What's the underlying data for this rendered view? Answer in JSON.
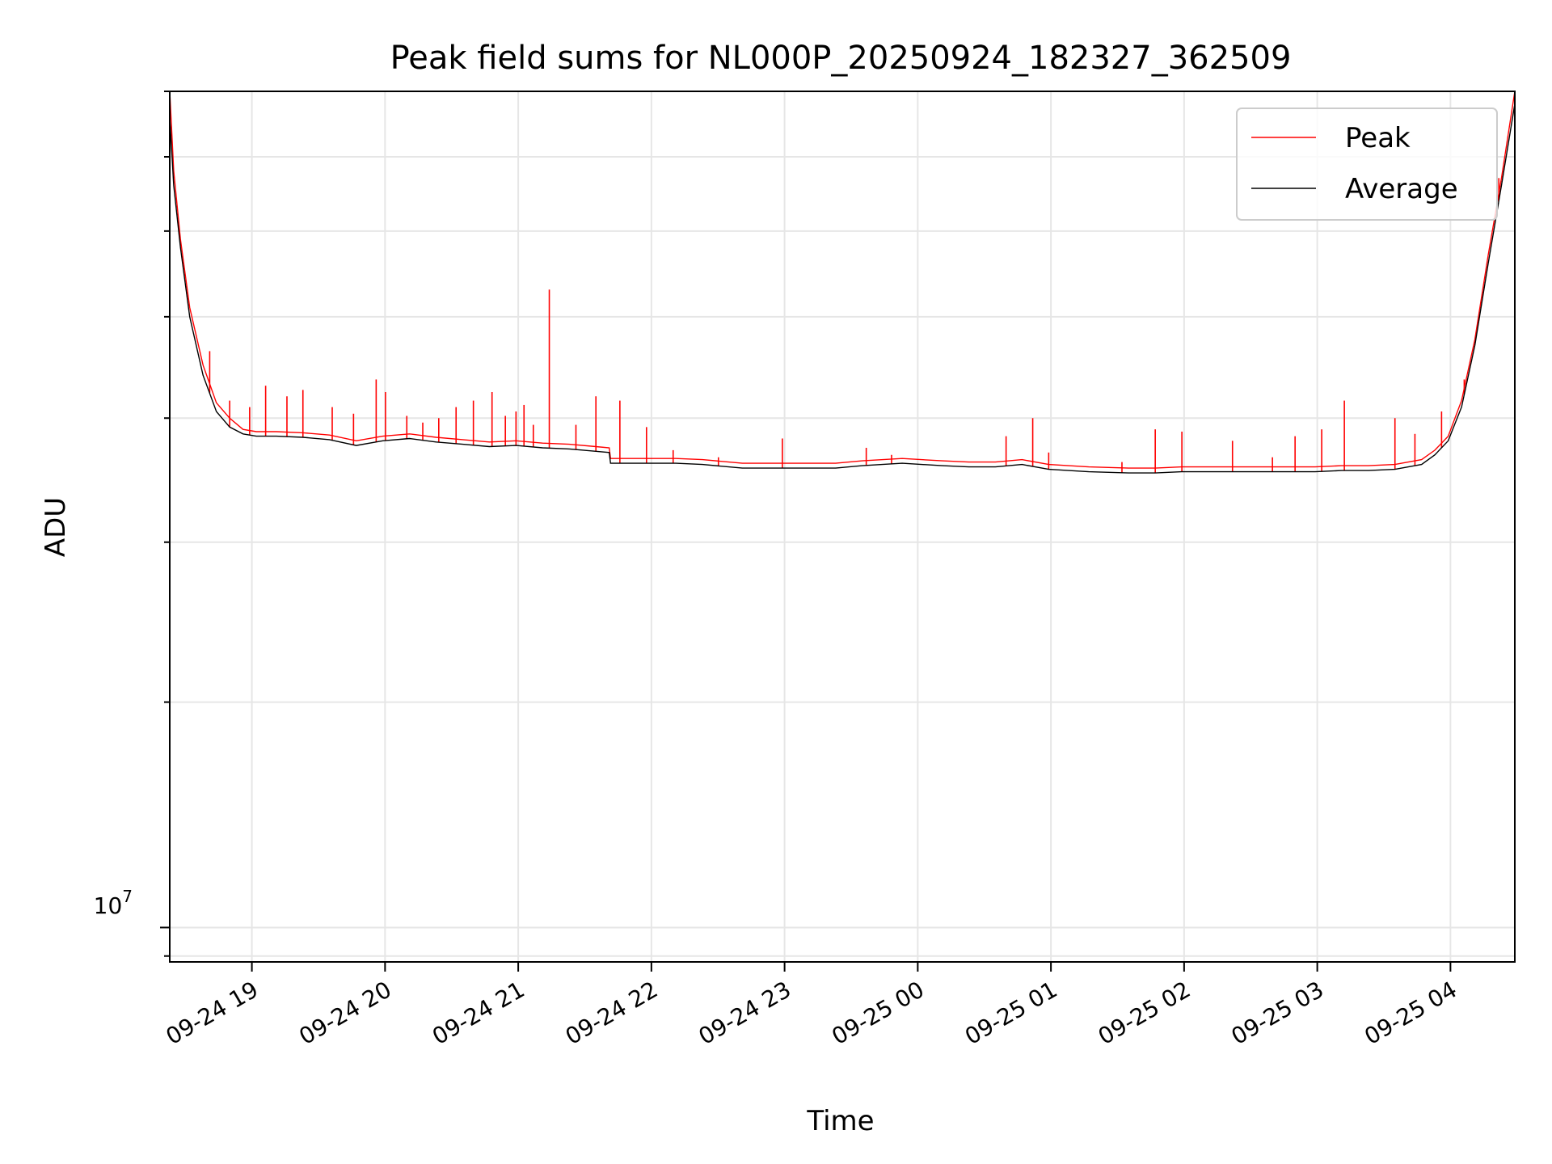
{
  "chart_data": {
    "type": "line",
    "title": "Peak field sums for NL000P_20250924_182327_362509",
    "xlabel": "Time",
    "ylabel": "ADU",
    "yscale": "log",
    "ylim": [
      9400000,
      45000000
    ],
    "xlim_hours": [
      0.0,
      10.1
    ],
    "x_unit": "hours since 09-24 18:23",
    "x_tick_labels": [
      "09-24 19",
      "09-24 20",
      "09-24 21",
      "09-24 22",
      "09-24 23",
      "09-25 00",
      "09-25 01",
      "09-25 02",
      "09-25 03",
      "09-25 04"
    ],
    "x_tick_hours": [
      0.6167,
      1.6167,
      2.6167,
      3.6167,
      4.6167,
      5.6167,
      6.6167,
      7.6167,
      8.6167,
      9.6167
    ],
    "y_tick_label": "10",
    "y_tick_exponent": "7",
    "y_tick_value": 10000000,
    "y_minor_ticks": [
      10000000,
      20000000,
      30000000,
      40000000
    ],
    "legend": {
      "location": "top-right",
      "entries": [
        "Peak",
        "Average"
      ]
    },
    "colors": {
      "peak": "#ff0000",
      "average": "#000000",
      "grid": "#e6e6e6",
      "axis": "#000000"
    },
    "series": [
      {
        "name": "Average",
        "x": [
          0.0,
          0.03,
          0.08,
          0.15,
          0.25,
          0.35,
          0.45,
          0.55,
          0.65,
          0.8,
          1.0,
          1.2,
          1.4,
          1.6,
          1.8,
          2.0,
          2.2,
          2.4,
          2.6,
          2.8,
          3.0,
          3.2,
          3.3,
          3.31,
          3.5,
          3.8,
          4.0,
          4.3,
          4.6,
          4.8,
          5.0,
          5.2,
          5.5,
          5.8,
          6.0,
          6.2,
          6.4,
          6.6,
          6.9,
          7.2,
          7.4,
          7.6,
          7.8,
          8.0,
          8.2,
          8.4,
          8.6,
          8.8,
          9.0,
          9.2,
          9.4,
          9.5,
          9.6,
          9.7,
          9.8,
          9.9,
          10.0,
          10.1
        ],
        "y": [
          43000000,
          38000000,
          34000000,
          30000000,
          27000000,
          25300000,
          24600000,
          24300000,
          24200000,
          24200000,
          24150000,
          24050000,
          23800000,
          24000000,
          24100000,
          23950000,
          23850000,
          23750000,
          23800000,
          23700000,
          23650000,
          23550000,
          23500000,
          23050000,
          23050000,
          23050000,
          23000000,
          22850000,
          22850000,
          22850000,
          22850000,
          22950000,
          23050000,
          22950000,
          22900000,
          22900000,
          23000000,
          22800000,
          22700000,
          22650000,
          22650000,
          22700000,
          22700000,
          22700000,
          22700000,
          22700000,
          22700000,
          22750000,
          22750000,
          22800000,
          23000000,
          23400000,
          24000000,
          25500000,
          28500000,
          33000000,
          38000000,
          44000000
        ]
      },
      {
        "name": "Peak",
        "x": [
          0.0,
          0.03,
          0.08,
          0.15,
          0.25,
          0.35,
          0.45,
          0.55,
          0.65,
          0.8,
          1.0,
          1.2,
          1.4,
          1.6,
          1.8,
          2.0,
          2.2,
          2.4,
          2.6,
          2.8,
          3.0,
          3.2,
          3.3,
          3.31,
          3.5,
          3.8,
          4.0,
          4.3,
          4.6,
          4.8,
          5.0,
          5.2,
          5.5,
          5.8,
          6.0,
          6.2,
          6.4,
          6.6,
          6.9,
          7.2,
          7.4,
          7.6,
          7.8,
          8.0,
          8.2,
          8.4,
          8.6,
          8.8,
          9.0,
          9.2,
          9.4,
          9.5,
          9.6,
          9.7,
          9.8,
          9.9,
          10.0,
          10.1
        ],
        "y": [
          45000000,
          39000000,
          34500000,
          30500000,
          27500000,
          25700000,
          25000000,
          24500000,
          24400000,
          24400000,
          24350000,
          24250000,
          24000000,
          24200000,
          24300000,
          24150000,
          24050000,
          23950000,
          24000000,
          23900000,
          23850000,
          23750000,
          23700000,
          23250000,
          23250000,
          23250000,
          23200000,
          23050000,
          23050000,
          23050000,
          23050000,
          23150000,
          23250000,
          23150000,
          23100000,
          23100000,
          23200000,
          23000000,
          22900000,
          22850000,
          22850000,
          22900000,
          22900000,
          22900000,
          22900000,
          22900000,
          22900000,
          22950000,
          22950000,
          23000000,
          23200000,
          23600000,
          24200000,
          25800000,
          28800000,
          33500000,
          38500000,
          45000000
        ],
        "spikes": [
          {
            "x": 0.3,
            "y": 28200000
          },
          {
            "x": 0.45,
            "y": 25800000
          },
          {
            "x": 0.6,
            "y": 25500000
          },
          {
            "x": 0.72,
            "y": 26500000
          },
          {
            "x": 0.88,
            "y": 26000000
          },
          {
            "x": 1.0,
            "y": 26300000
          },
          {
            "x": 1.22,
            "y": 25500000
          },
          {
            "x": 1.38,
            "y": 25200000
          },
          {
            "x": 1.55,
            "y": 26800000
          },
          {
            "x": 1.62,
            "y": 26200000
          },
          {
            "x": 1.78,
            "y": 25100000
          },
          {
            "x": 1.9,
            "y": 24800000
          },
          {
            "x": 2.02,
            "y": 25000000
          },
          {
            "x": 2.15,
            "y": 25500000
          },
          {
            "x": 2.28,
            "y": 25800000
          },
          {
            "x": 2.42,
            "y": 26200000
          },
          {
            "x": 2.52,
            "y": 25100000
          },
          {
            "x": 2.6,
            "y": 25300000
          },
          {
            "x": 2.66,
            "y": 25600000
          },
          {
            "x": 2.73,
            "y": 24700000
          },
          {
            "x": 2.85,
            "y": 31500000
          },
          {
            "x": 3.05,
            "y": 24700000
          },
          {
            "x": 3.2,
            "y": 26000000
          },
          {
            "x": 3.38,
            "y": 25800000
          },
          {
            "x": 3.58,
            "y": 24600000
          },
          {
            "x": 3.78,
            "y": 23600000
          },
          {
            "x": 4.12,
            "y": 23300000
          },
          {
            "x": 4.6,
            "y": 24100000
          },
          {
            "x": 5.23,
            "y": 23700000
          },
          {
            "x": 5.42,
            "y": 23400000
          },
          {
            "x": 6.28,
            "y": 24200000
          },
          {
            "x": 6.48,
            "y": 25000000
          },
          {
            "x": 6.6,
            "y": 23500000
          },
          {
            "x": 7.15,
            "y": 23100000
          },
          {
            "x": 7.4,
            "y": 24500000
          },
          {
            "x": 7.6,
            "y": 24400000
          },
          {
            "x": 7.98,
            "y": 24000000
          },
          {
            "x": 8.28,
            "y": 23300000
          },
          {
            "x": 8.45,
            "y": 24200000
          },
          {
            "x": 8.65,
            "y": 24500000
          },
          {
            "x": 8.82,
            "y": 25800000
          },
          {
            "x": 9.2,
            "y": 25000000
          },
          {
            "x": 9.35,
            "y": 24300000
          },
          {
            "x": 9.55,
            "y": 25300000
          },
          {
            "x": 9.72,
            "y": 26800000
          },
          {
            "x": 9.98,
            "y": 38500000
          }
        ]
      }
    ]
  }
}
